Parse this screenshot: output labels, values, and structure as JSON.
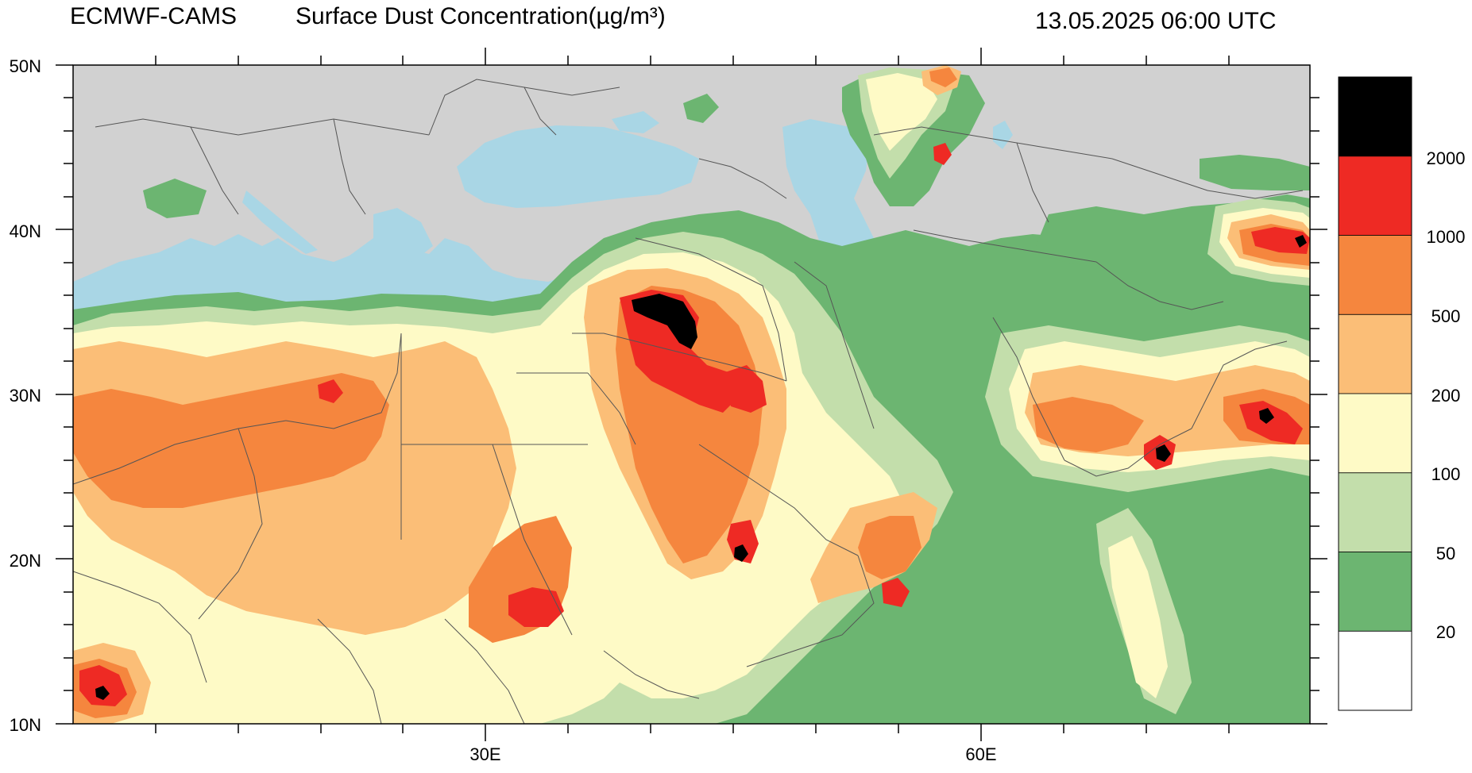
{
  "header": {
    "model": "ECMWF-CAMS",
    "product": "Surface Dust Concentration(µg/m³)",
    "valid_time": "13.05.2025 06:00 UTC"
  },
  "map": {
    "lat_labels": [
      "50N",
      "40N",
      "30N",
      "20N",
      "10N"
    ],
    "lon_labels": [
      "30E",
      "60E"
    ],
    "lat_range": [
      10,
      50
    ],
    "lon_range": [
      -5,
      70
    ],
    "colors": {
      "land": "#d1d1d1",
      "water": "#a9d6e5",
      "borders": "#555555"
    }
  },
  "colorbar": {
    "levels": [
      "2000",
      "1000",
      "500",
      "200",
      "100",
      "50",
      "20"
    ],
    "colors": [
      "#000000",
      "#ee2a24",
      "#f5863e",
      "#fbbe77",
      "#fefac6",
      "#c3deab",
      "#6cb571",
      "#ffffff"
    ]
  }
}
